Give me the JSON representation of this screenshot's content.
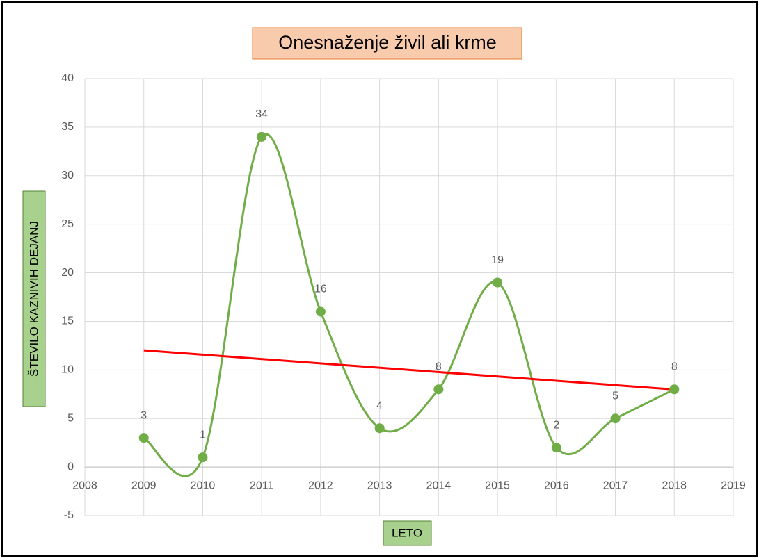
{
  "chart_data": {
    "type": "line",
    "title": "Onesnaženje  živil ali krme",
    "x_label": "LETO",
    "y_label": "ŠTEVILO KAZNIVIH DEJANJ",
    "x": [
      2009,
      2010,
      2011,
      2012,
      2013,
      2014,
      2015,
      2016,
      2017,
      2018
    ],
    "series": [
      {
        "name": "Onesnaženje  živil ali krme",
        "color": "#70ad47",
        "values": [
          3,
          1,
          34,
          16,
          4,
          8,
          19,
          2,
          5,
          8
        ]
      }
    ],
    "smooth": true,
    "trendline": {
      "kind": "linear",
      "color": "#ff0000"
    },
    "xlim": [
      2008,
      2019
    ],
    "xticks": [
      2008,
      2009,
      2010,
      2011,
      2012,
      2013,
      2014,
      2015,
      2016,
      2017,
      2018,
      2019
    ],
    "ylim": [
      -5,
      40
    ],
    "yticks": [
      -5,
      0,
      5,
      10,
      15,
      20,
      25,
      30,
      35,
      40
    ],
    "grid": true
  }
}
